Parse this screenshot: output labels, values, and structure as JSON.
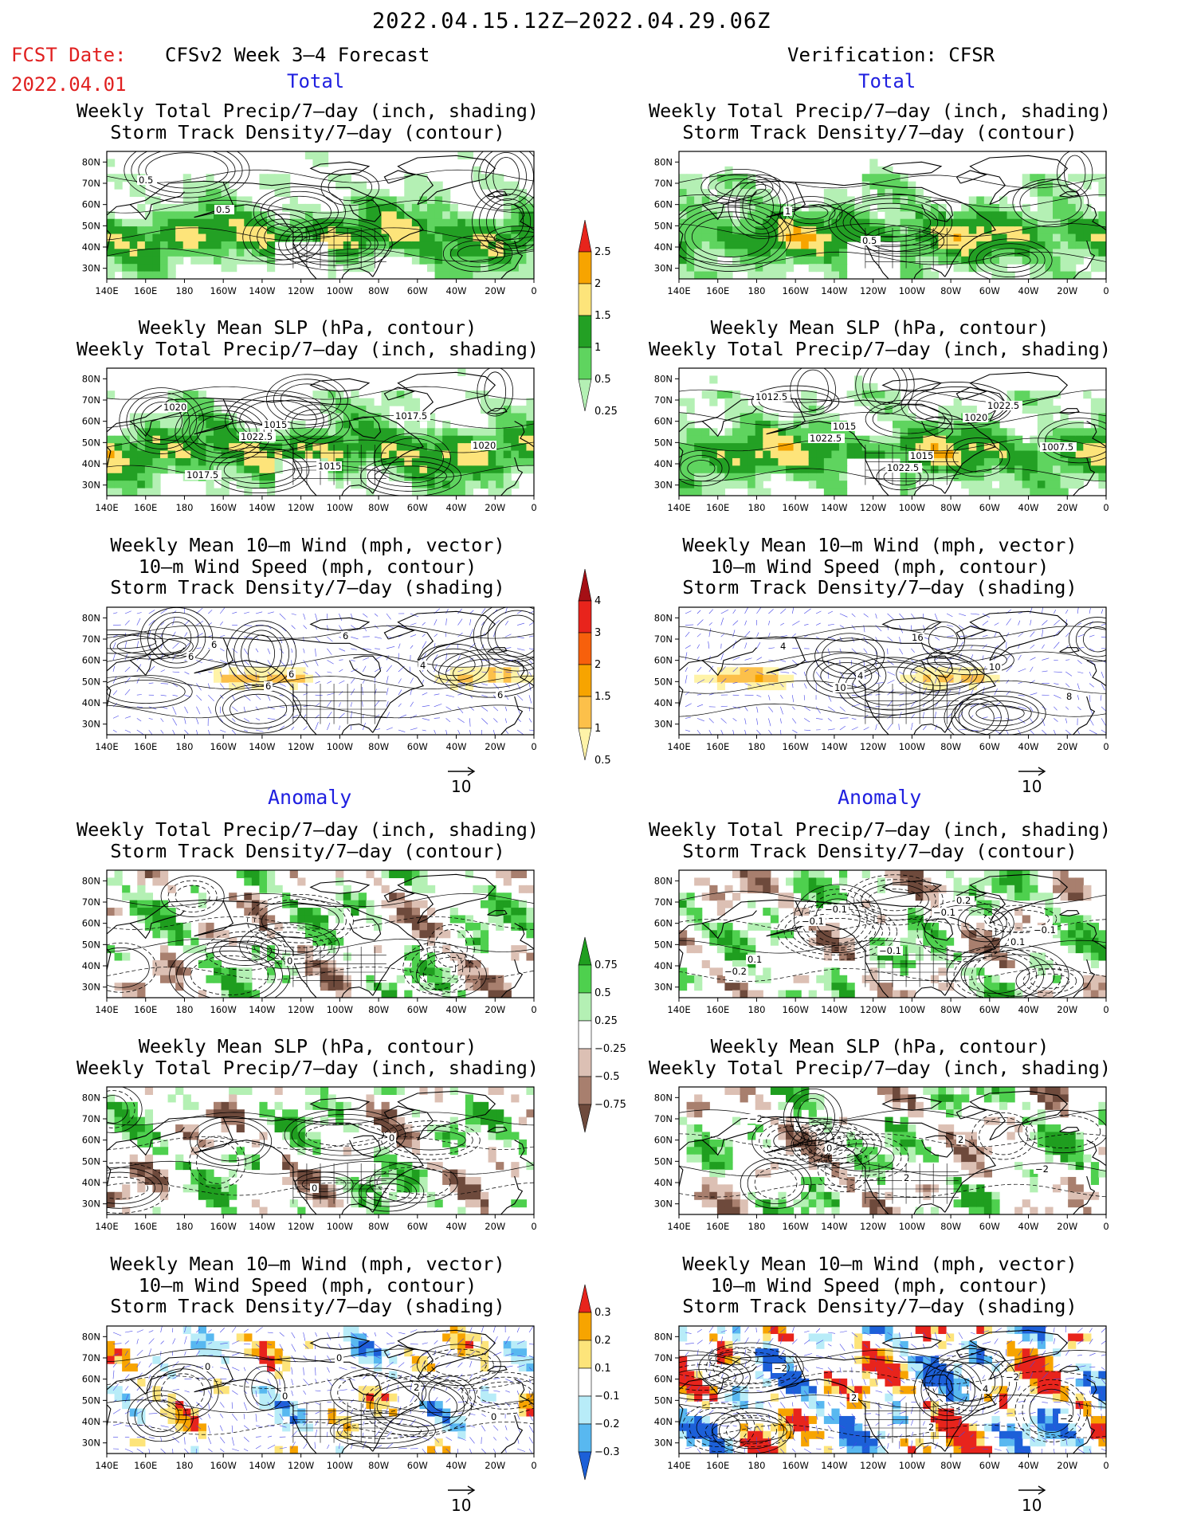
{
  "header": {
    "date_range": "2022.04.15.12Z–2022.04.29.06Z",
    "fcst_label": "FCST Date:",
    "fcst_date": "2022.04.01",
    "left_title": "CFSv2 Week 3–4 Forecast",
    "right_title": "Verification: CFSR"
  },
  "sections": {
    "total": "Total",
    "anomaly": "Anomaly"
  },
  "panel_titles": {
    "precip_storm": [
      "Weekly Total Precip/7–day (inch, shading)",
      "Storm Track Density/7–day (contour)"
    ],
    "slp_precip": [
      "Weekly Mean SLP (hPa, contour)",
      "Weekly Total Precip/7–day (inch, shading)"
    ],
    "wind_storm": [
      "Weekly Mean 10–m Wind (mph, vector)",
      "10–m Wind Speed (mph, contour)",
      "Storm Track Density/7–day (shading)"
    ]
  },
  "axes": {
    "lat_ticks": [
      "80N",
      "70N",
      "60N",
      "50N",
      "40N",
      "30N"
    ],
    "lon_ticks": [
      "140E",
      "160E",
      "180",
      "160W",
      "140W",
      "120W",
      "100W",
      "80W",
      "60W",
      "40W",
      "20W",
      "0"
    ]
  },
  "vector_reference": "10",
  "colorbars": {
    "precip_total": {
      "labels": [
        "2.5",
        "2",
        "1.5",
        "1",
        "0.5",
        "0.25"
      ],
      "colors": [
        "#e8241c",
        "#f7a400",
        "#fde47a",
        "#23a024",
        "#5fd45f",
        "#b4f0b4"
      ]
    },
    "storm_total": {
      "labels": [
        "4",
        "3",
        "2",
        "1.5",
        "1",
        "0.5"
      ],
      "colors": [
        "#a50f15",
        "#e8241c",
        "#f7600c",
        "#f7a400",
        "#fcc04a",
        "#fff3a8"
      ]
    },
    "precip_anom": {
      "labels": [
        "0.75",
        "0.5",
        "0.25",
        "−0.25",
        "−0.5",
        "−0.75"
      ],
      "colors": [
        "#1f9e1f",
        "#4ed04e",
        "#b4f0b4",
        "#ffffff",
        "#dcc0b4",
        "#a87f6e",
        "#6e4a3c"
      ]
    },
    "storm_anom": {
      "labels": [
        "0.3",
        "0.2",
        "0.1",
        "−0.1",
        "−0.2",
        "−0.3"
      ],
      "colors": [
        "#e8241c",
        "#f7a400",
        "#fde47a",
        "#ffffff",
        "#b8ecf8",
        "#58b8f0",
        "#1c60d8"
      ]
    }
  },
  "contour_labels": {
    "fcst_precip_total": [
      "0.5",
      "0.5"
    ],
    "fcst_slp_total": [
      "1020",
      "1022.5",
      "1015",
      "1017.5",
      "1020",
      "1017.5",
      "1015"
    ],
    "fcst_wind_total": [
      "6",
      "6",
      "6",
      "4",
      "6",
      "6",
      "6"
    ],
    "cfsr_precip_total": [
      "1",
      "0.5"
    ],
    "cfsr_slp_total": [
      "1022.5",
      "1022.5",
      "1020",
      "1007.5",
      "1012.5",
      "1015",
      "1015",
      "1022.5"
    ],
    "cfsr_wind_total": [
      "10",
      "16",
      "10",
      "8",
      "4",
      "4"
    ],
    "fcst_precip_anom": [
      "0"
    ],
    "fcst_slp_anom": [
      "0",
      "0"
    ],
    "fcst_wind_anom": [
      "0",
      "2",
      "0",
      "0",
      "0"
    ],
    "cfsr_precip_anom": [
      "−0.1",
      "0.1",
      "−0.2",
      "−0.1",
      "−0.1",
      "0.2",
      "−0.1",
      "0.1",
      "−0.1"
    ],
    "cfsr_slp_anom": [
      "2",
      "−2",
      "−2",
      "0",
      "2"
    ],
    "cfsr_wind_anom": [
      "4",
      "−2",
      "−2",
      "2",
      "2",
      "−2"
    ]
  }
}
